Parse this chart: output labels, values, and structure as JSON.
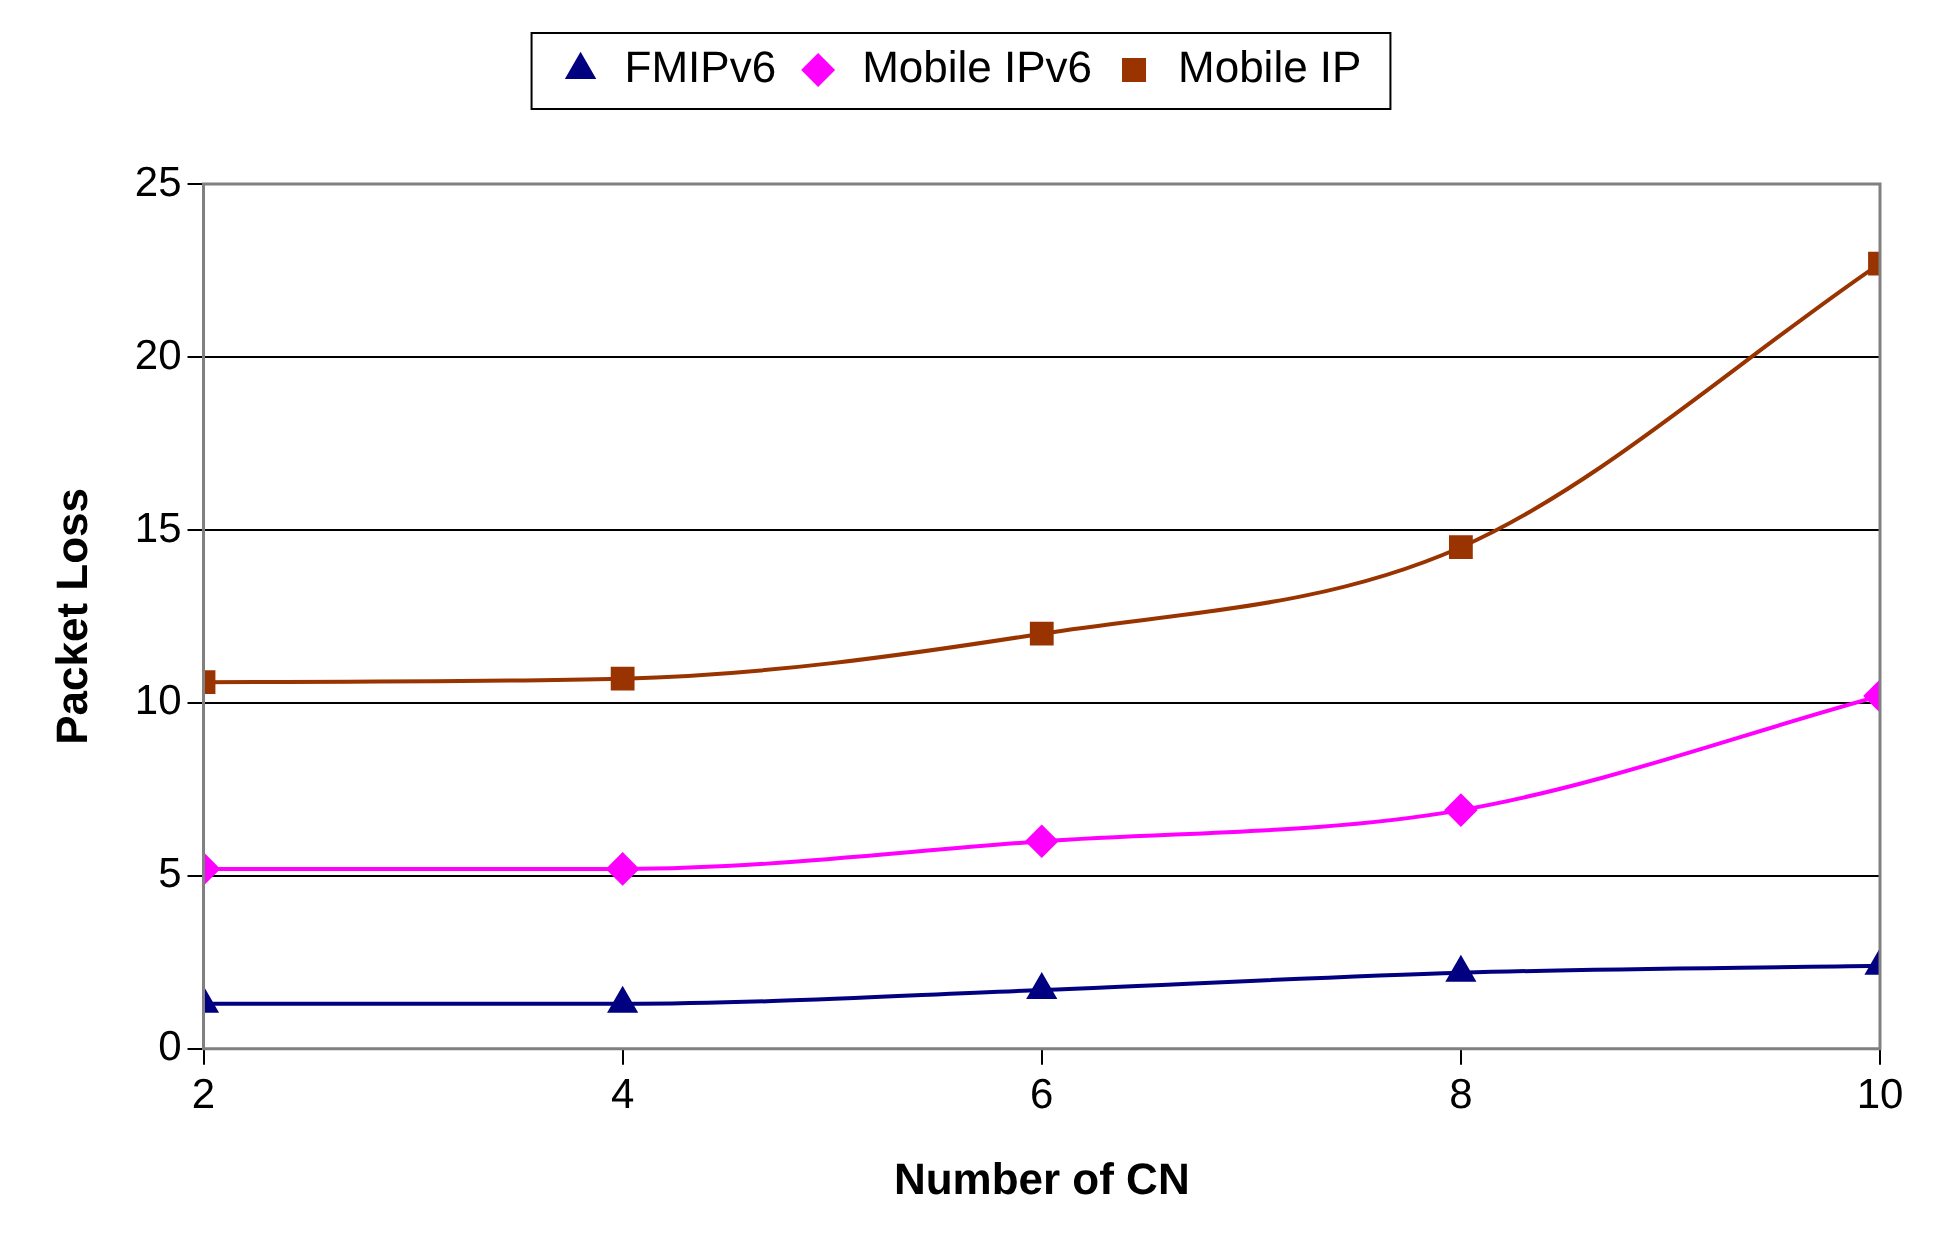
{
  "chart_data": {
    "type": "line",
    "xlabel": "Number of CN",
    "ylabel": "Packet Loss",
    "x": [
      2,
      4,
      6,
      8,
      10
    ],
    "series": [
      {
        "name": "FMIPv6",
        "color": "#000080",
        "marker": "triangle",
        "values": [
          1.3,
          1.3,
          1.7,
          2.2,
          2.4
        ]
      },
      {
        "name": "Mobile IPv6",
        "color": "#ff00ff",
        "marker": "diamond",
        "values": [
          5.2,
          5.2,
          6.0,
          6.9,
          10.2
        ]
      },
      {
        "name": "Mobile IP",
        "color": "#993300",
        "marker": "square",
        "values": [
          10.6,
          10.7,
          12.0,
          14.5,
          22.7
        ]
      }
    ],
    "xlim": [
      2,
      10
    ],
    "xticks": [
      2,
      4,
      6,
      8,
      10
    ],
    "ylim": [
      0,
      25
    ],
    "yticks": [
      0,
      5,
      10,
      15,
      20,
      25
    ],
    "grid": "y",
    "legend": "top",
    "line_style": "solid"
  }
}
